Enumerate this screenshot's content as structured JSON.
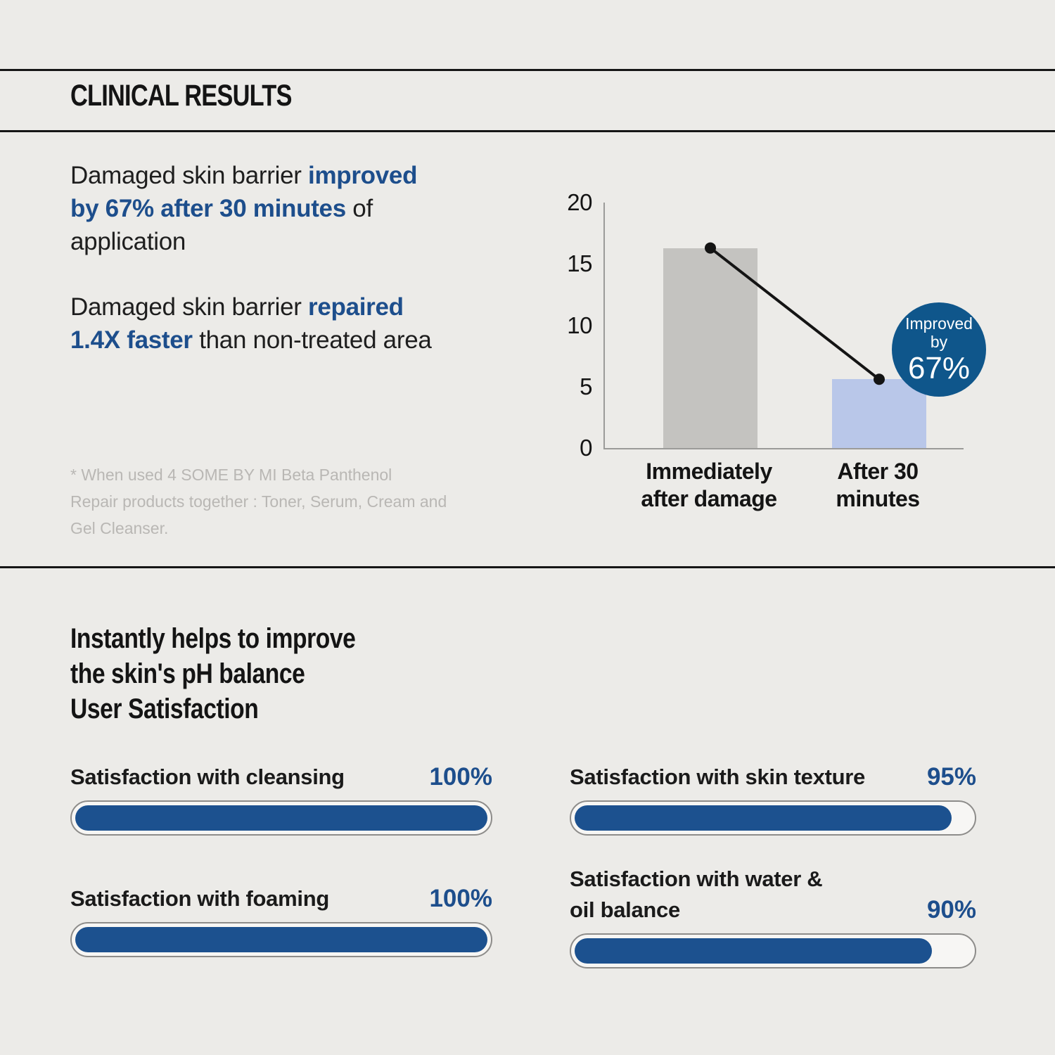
{
  "page": {
    "background": "#ecebe8",
    "accent_blue": "#1d4e8c",
    "badge_blue": "#0f568b",
    "progress_blue": "#1c518f",
    "divider_color": "#161616"
  },
  "header": {
    "title": "CLINICAL RESULTS"
  },
  "claims": {
    "p1": {
      "l1n": "Damaged skin barrier ",
      "l1b": "improved",
      "l2b": "by 67% after 30 minutes",
      "l2n": " of",
      "l3n": "application"
    },
    "p2": {
      "l1n": "Damaged skin barrier ",
      "l1b": "repaired",
      "l2b": "1.4X faster",
      "l2n": " than non-treated area"
    }
  },
  "disclaimer": "* When used 4 SOME BY MI Beta Panthenol\nRepair products together : Toner, Serum, Cream and\nGel Cleanser.",
  "chart_data": [
    {
      "type": "bar",
      "title": "Damaged skin barrier improvement",
      "categories": [
        "Immediately after damage",
        "After 30 minutes"
      ],
      "category_lines": [
        [
          "Immediately",
          "after damage"
        ],
        [
          "After 30",
          "minutes"
        ]
      ],
      "values": [
        16.3,
        5.6
      ],
      "ylim": [
        0,
        20
      ],
      "yticks": [
        0,
        5,
        10,
        15,
        20
      ],
      "ytick_labels_top_down": [
        "20",
        "15",
        "10",
        "5",
        "0"
      ],
      "bar_colors": [
        "#c4c3c0",
        "#b9c7e9"
      ],
      "trend_line": {
        "present": true,
        "color": "#141414"
      },
      "annotation": {
        "lines": [
          "Improved",
          "by",
          "67%"
        ],
        "bg": "#0f568b"
      },
      "grid": false,
      "legend": false
    },
    {
      "type": "bar",
      "orientation": "horizontal",
      "title": "User Satisfaction",
      "categories": [
        "Satisfaction with cleansing",
        "Satisfaction with skin texture",
        "Satisfaction with foaming",
        "Satisfaction with water & oil balance"
      ],
      "values": [
        100,
        95,
        100,
        90
      ],
      "unit": "%",
      "xlim": [
        0,
        100
      ]
    }
  ],
  "satisfaction": {
    "intro_lines": [
      "Instantly helps to improve",
      "the skin's pH balance",
      "User Satisfaction"
    ],
    "items": [
      {
        "label": "Satisfaction with cleansing",
        "value": 100,
        "value_label": "100%"
      },
      {
        "label": "Satisfaction with skin texture",
        "value": 95,
        "value_label": "95%"
      },
      {
        "label": "Satisfaction with foaming",
        "value": 100,
        "value_label": "100%"
      },
      {
        "label": "Satisfaction with water &\noil balance",
        "value": 90,
        "value_label": "90%"
      }
    ]
  }
}
